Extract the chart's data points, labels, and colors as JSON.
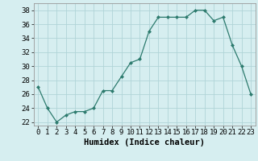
{
  "x": [
    0,
    1,
    2,
    3,
    4,
    5,
    6,
    7,
    8,
    9,
    10,
    11,
    12,
    13,
    14,
    15,
    16,
    17,
    18,
    19,
    20,
    21,
    22,
    23
  ],
  "y": [
    27,
    24,
    22,
    23,
    23.5,
    23.5,
    24,
    26.5,
    26.5,
    28.5,
    30.5,
    31,
    35,
    37,
    37,
    37,
    37,
    38,
    38,
    36.5,
    37,
    33,
    30,
    26
  ],
  "line_color": "#2d7b6e",
  "marker_color": "#2d7b6e",
  "bg_color": "#d6eef0",
  "grid_color": "#b0d4d8",
  "xlabel": "Humidex (Indice chaleur)",
  "ylabel_ticks": [
    22,
    24,
    26,
    28,
    30,
    32,
    34,
    36,
    38
  ],
  "xtick_labels": [
    "0",
    "1",
    "2",
    "3",
    "4",
    "5",
    "6",
    "7",
    "8",
    "9",
    "10",
    "11",
    "12",
    "13",
    "14",
    "15",
    "16",
    "17",
    "18",
    "19",
    "20",
    "21",
    "22",
    "23"
  ],
  "xlim": [
    -0.5,
    23.5
  ],
  "ylim": [
    21.5,
    39
  ],
  "xlabel_fontsize": 7.5,
  "tick_fontsize": 6.5
}
